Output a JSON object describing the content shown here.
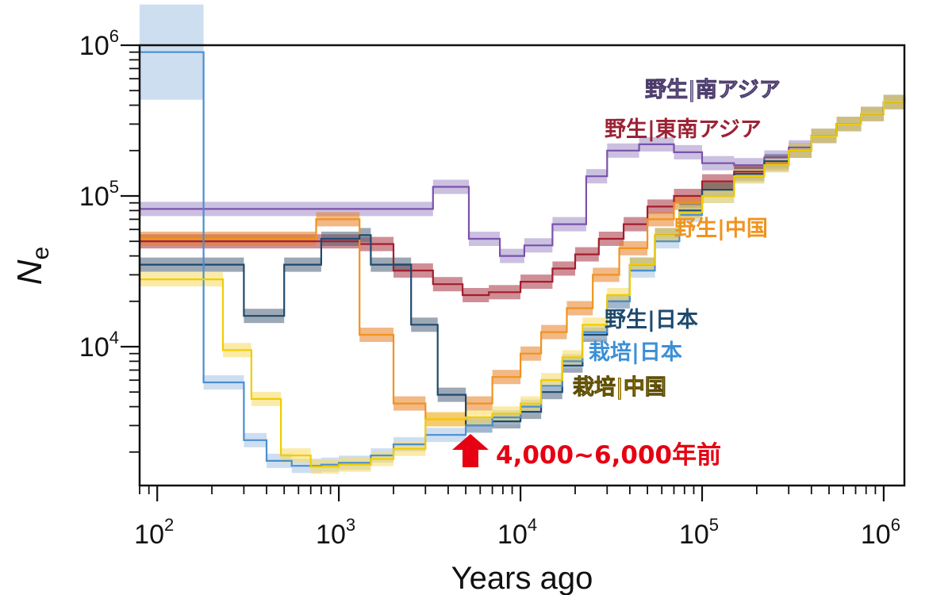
{
  "chart_data": {
    "type": "line",
    "subtype": "step",
    "title": "",
    "xlabel": "Years ago",
    "ylabel_main": "N",
    "ylabel_sub": "e",
    "xscale": "log",
    "yscale": "log",
    "xlim": [
      80,
      1300000
    ],
    "ylim": [
      1200,
      1000000
    ],
    "x_ticks": [
      {
        "base": "10",
        "exp": "2",
        "value": 100
      },
      {
        "base": "10",
        "exp": "3",
        "value": 1000
      },
      {
        "base": "10",
        "exp": "4",
        "value": 10000
      },
      {
        "base": "10",
        "exp": "5",
        "value": 100000
      },
      {
        "base": "10",
        "exp": "6",
        "value": 1000000
      }
    ],
    "y_ticks": [
      {
        "base": "10",
        "exp": "4",
        "value": 10000
      },
      {
        "base": "10",
        "exp": "5",
        "value": 100000
      },
      {
        "base": "10",
        "exp": "6",
        "value": 1000000
      }
    ],
    "grid": false,
    "legend": "inline labels, right side",
    "series": [
      {
        "name": "野生|南アジア",
        "color": "#7b52ab",
        "label_color": "#9a8fc0",
        "band_color": "#a08cc6",
        "x": [
          80,
          3300,
          5200,
          7700,
          10500,
          15000,
          23000,
          30000,
          45000,
          70000,
          100000,
          150000,
          220000,
          300000,
          400000,
          550000,
          750000,
          1000000,
          1300000
        ],
        "y": [
          82000,
          115000,
          52000,
          40000,
          47000,
          65000,
          135000,
          200000,
          220000,
          195000,
          165000,
          160000,
          180000,
          210000,
          250000,
          300000,
          350000,
          420000,
          450000
        ]
      },
      {
        "name": "野生|東南アジア",
        "color": "#a31e2d",
        "label_color": "#9b2335",
        "band_color": "#a8323e",
        "x": [
          80,
          1300,
          2000,
          3300,
          4800,
          6700,
          10000,
          15000,
          20000,
          27000,
          37000,
          50000,
          70000,
          100000,
          150000,
          220000,
          300000,
          400000,
          550000,
          750000,
          1000000,
          1300000
        ],
        "y": [
          50000,
          48000,
          32000,
          26000,
          22000,
          23000,
          27000,
          33000,
          41000,
          52000,
          65000,
          85000,
          100000,
          125000,
          145000,
          165000,
          200000,
          250000,
          300000,
          350000,
          420000,
          450000
        ]
      },
      {
        "name": "野生|中国",
        "color": "#f0931e",
        "label_color": "#f0931e",
        "band_color": "#e87d22",
        "x": [
          80,
          750,
          1300,
          2000,
          3000,
          5000,
          7000,
          10000,
          13000,
          18000,
          25000,
          35000,
          50000,
          70000,
          100000,
          150000,
          220000,
          300000,
          400000,
          550000,
          750000,
          1000000,
          1300000
        ],
        "y": [
          52000,
          70000,
          12000,
          4200,
          3300,
          4200,
          6300,
          9000,
          12500,
          18000,
          30000,
          45000,
          70000,
          90000,
          110000,
          140000,
          165000,
          200000,
          250000,
          300000,
          350000,
          420000,
          450000
        ]
      },
      {
        "name": "野生|日本",
        "color": "#1e4a6e",
        "label_color": "#1e4a6e",
        "band_color": "#4a6078",
        "x": [
          80,
          300,
          500,
          800,
          1300,
          1500,
          2500,
          3500,
          5000,
          7000,
          10000,
          13000,
          17000,
          22000,
          30000,
          40000,
          55000,
          75000,
          100000,
          150000,
          220000,
          300000,
          400000,
          550000,
          750000,
          1000000,
          1300000
        ],
        "y": [
          35000,
          16000,
          35000,
          52000,
          55000,
          35000,
          14000,
          4800,
          3000,
          3200,
          3700,
          5000,
          7500,
          12000,
          20000,
          35000,
          55000,
          80000,
          110000,
          140000,
          170000,
          200000,
          250000,
          300000,
          350000,
          420000,
          450000
        ]
      },
      {
        "name": "栽培|日本",
        "color": "#4a8fd0",
        "label_color": "#3d8fd6",
        "band_color": "#a6c3e6",
        "x": [
          80,
          180,
          300,
          400,
          550,
          800,
          1000,
          1500,
          2000,
          3000,
          5000,
          7000,
          10000,
          13000,
          17000,
          22000,
          30000,
          40000,
          55000,
          75000,
          100000,
          150000,
          220000,
          300000,
          400000,
          550000,
          750000,
          1000000,
          1300000
        ],
        "y": [
          900000,
          5800,
          2400,
          1750,
          1620,
          1650,
          1700,
          1900,
          2250,
          2600,
          3000,
          3400,
          4000,
          5500,
          8000,
          12500,
          20000,
          32000,
          50000,
          75000,
          100000,
          135000,
          160000,
          200000,
          250000,
          300000,
          350000,
          420000,
          450000
        ]
      },
      {
        "name": "栽培|中国",
        "color": "#f2cc00",
        "label_color": "#f5c518",
        "band_color": "#f7da5e",
        "x": [
          80,
          230,
          330,
          480,
          700,
          1000,
          1500,
          2000,
          3000,
          5000,
          7000,
          10000,
          13000,
          17000,
          22000,
          30000,
          40000,
          55000,
          75000,
          100000,
          150000,
          220000,
          300000,
          400000,
          550000,
          750000,
          1000000,
          1300000
        ],
        "y": [
          28000,
          9500,
          4500,
          1900,
          1600,
          1650,
          1800,
          2100,
          3300,
          3400,
          3600,
          4200,
          6000,
          8500,
          14000,
          22000,
          35000,
          55000,
          78000,
          100000,
          135000,
          160000,
          200000,
          250000,
          300000,
          350000,
          420000,
          450000
        ]
      }
    ],
    "annotations": [
      {
        "text": "4,000~6,000年前",
        "color": "#e60012",
        "x": 5000,
        "y": 2300
      }
    ]
  }
}
